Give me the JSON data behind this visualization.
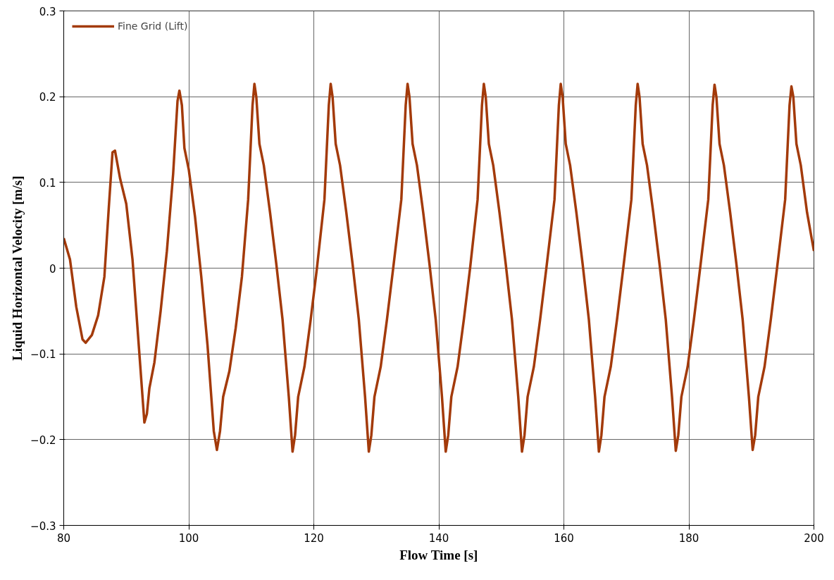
{
  "chart_data": {
    "type": "line",
    "xlabel": "Flow Time [s]",
    "ylabel": "Liquid Horizontal Velocity [m/s]",
    "xlim": [
      80,
      200
    ],
    "xticks": [
      80,
      100,
      120,
      140,
      160,
      180,
      200
    ],
    "ylim": [
      -0.3,
      0.3
    ],
    "yticks": [
      {
        "value": -0.3,
        "label": "−0.3"
      },
      {
        "value": -0.2,
        "label": "−0.2"
      },
      {
        "value": -0.1,
        "label": "−0.1"
      },
      0,
      0.1,
      0.2,
      0.3
    ],
    "grid": true,
    "legend": "top left",
    "line_style": "solid",
    "marker": "none",
    "series": [
      {
        "name": "Fine Grid (Lift)",
        "color": "#a33a0a",
        "x": [
          80,
          81,
          82,
          83,
          83.5,
          84.5,
          85.5,
          86.5,
          87.2,
          87.8,
          88.2,
          89,
          90,
          91,
          92,
          92.9,
          93.3,
          93.7,
          94.5,
          95.5,
          96.5,
          97.5,
          98.2,
          98.5,
          98.9,
          99.3,
          100,
          101,
          102,
          103,
          104,
          104.5,
          105,
          105.5,
          106.5,
          107.5,
          108.5,
          109.5,
          110.2,
          110.5,
          110.8,
          111.3,
          112,
          113,
          114,
          115,
          116,
          116.6,
          117,
          117.5,
          118.5,
          119.5,
          120.5,
          121.7,
          122.4,
          122.7,
          123,
          123.5,
          124.2,
          125.2,
          126.2,
          127.2,
          128.2,
          128.8,
          129.2,
          129.7,
          130.7,
          131.7,
          132.7,
          134,
          134.7,
          135,
          135.3,
          135.8,
          136.5,
          137.5,
          138.5,
          139.5,
          140.5,
          141.1,
          141.5,
          142,
          143,
          144,
          145,
          146.2,
          146.9,
          147.2,
          147.5,
          148,
          148.7,
          149.7,
          150.7,
          151.7,
          152.7,
          153.3,
          153.7,
          154.2,
          155.2,
          156.2,
          157.2,
          158.5,
          159.2,
          159.5,
          159.8,
          160.3,
          161,
          162,
          163,
          164,
          165,
          165.6,
          166,
          166.5,
          167.5,
          168.5,
          169.5,
          170.8,
          171.5,
          171.8,
          172.1,
          172.6,
          173.3,
          174.3,
          175.3,
          176.3,
          177.3,
          177.9,
          178.3,
          178.8,
          179.8,
          180.8,
          181.8,
          183.1,
          183.8,
          184.1,
          184.4,
          184.9,
          185.6,
          186.6,
          187.6,
          188.6,
          189.6,
          190.2,
          190.6,
          191.1,
          192.1,
          193.1,
          194.1,
          195.4,
          196.1,
          196.4,
          196.7,
          197.2,
          197.9,
          198.9,
          200
        ],
        "values": [
          0.035,
          0.01,
          -0.045,
          -0.083,
          -0.087,
          -0.078,
          -0.055,
          -0.01,
          0.07,
          0.135,
          0.137,
          0.105,
          0.075,
          0.01,
          -0.09,
          -0.18,
          -0.17,
          -0.14,
          -0.11,
          -0.05,
          0.02,
          0.11,
          0.195,
          0.207,
          0.19,
          0.14,
          0.115,
          0.06,
          -0.01,
          -0.09,
          -0.19,
          -0.212,
          -0.19,
          -0.15,
          -0.12,
          -0.07,
          -0.01,
          0.08,
          0.19,
          0.215,
          0.2,
          0.145,
          0.12,
          0.065,
          0.005,
          -0.06,
          -0.15,
          -0.214,
          -0.195,
          -0.15,
          -0.115,
          -0.06,
          0.0,
          0.08,
          0.19,
          0.215,
          0.2,
          0.145,
          0.12,
          0.065,
          0.005,
          -0.06,
          -0.15,
          -0.214,
          -0.195,
          -0.15,
          -0.115,
          -0.06,
          0.0,
          0.08,
          0.19,
          0.215,
          0.2,
          0.145,
          0.12,
          0.065,
          0.005,
          -0.06,
          -0.15,
          -0.214,
          -0.195,
          -0.15,
          -0.115,
          -0.06,
          0.0,
          0.08,
          0.19,
          0.215,
          0.2,
          0.145,
          0.12,
          0.065,
          0.005,
          -0.06,
          -0.15,
          -0.214,
          -0.195,
          -0.15,
          -0.115,
          -0.06,
          0.0,
          0.08,
          0.19,
          0.215,
          0.2,
          0.145,
          0.12,
          0.065,
          0.005,
          -0.06,
          -0.15,
          -0.214,
          -0.195,
          -0.15,
          -0.115,
          -0.06,
          0.0,
          0.08,
          0.19,
          0.215,
          0.2,
          0.145,
          0.12,
          0.065,
          0.005,
          -0.06,
          -0.15,
          -0.213,
          -0.195,
          -0.15,
          -0.115,
          -0.06,
          0.0,
          0.08,
          0.19,
          0.214,
          0.2,
          0.145,
          0.12,
          0.065,
          0.005,
          -0.06,
          -0.15,
          -0.212,
          -0.195,
          -0.15,
          -0.115,
          -0.06,
          0.0,
          0.08,
          0.19,
          0.212,
          0.2,
          0.145,
          0.12,
          0.065,
          0.02
        ]
      }
    ]
  }
}
